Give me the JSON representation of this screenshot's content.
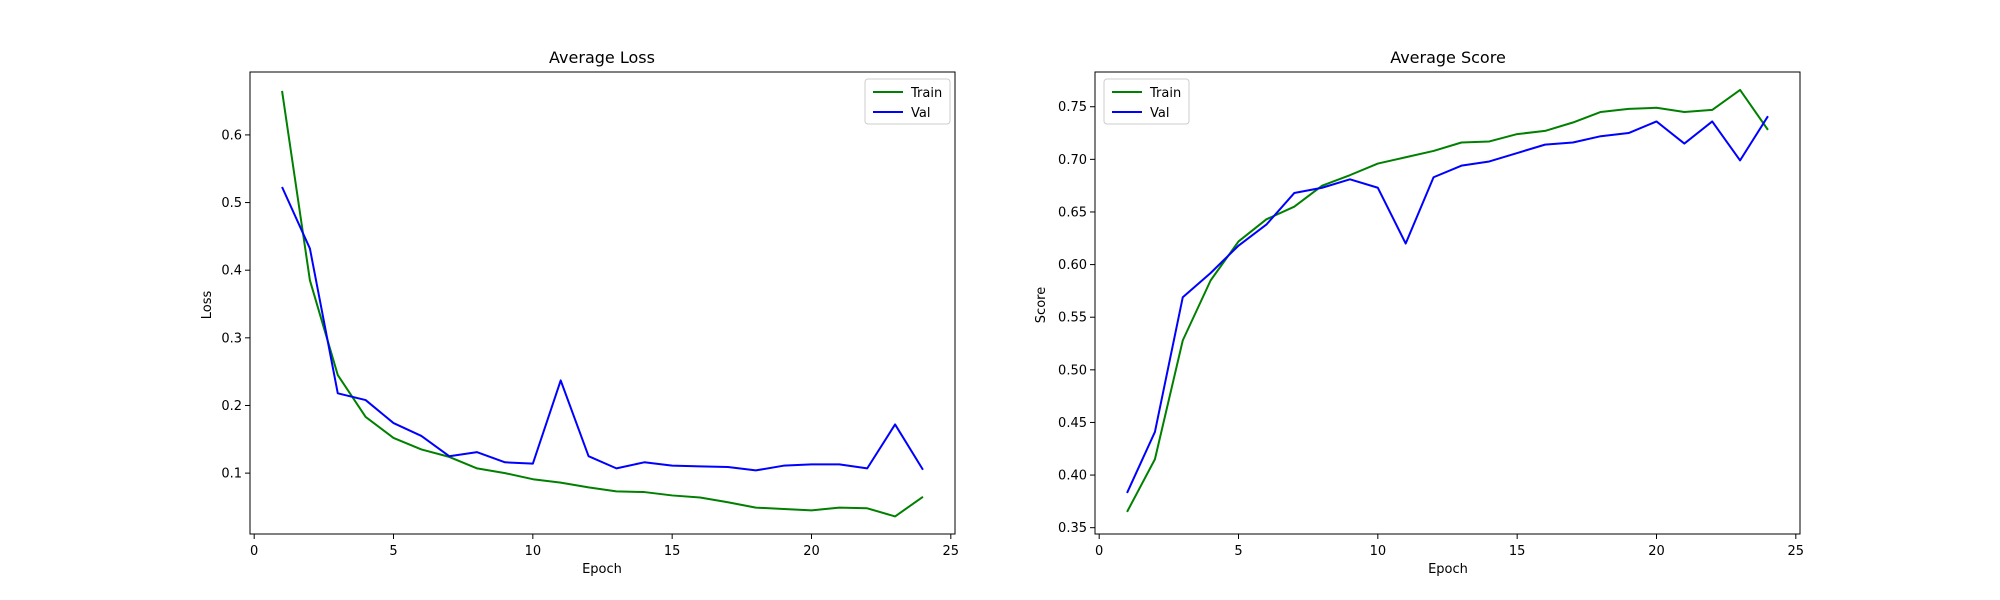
{
  "chart_data": [
    {
      "type": "line",
      "title": "Average Loss",
      "xlabel": "Epoch",
      "ylabel": "Loss",
      "xlim": [
        -0.15,
        25.15
      ],
      "ylim": [
        0.01,
        0.693
      ],
      "xticks": [
        0,
        5,
        10,
        15,
        20,
        25
      ],
      "yticks": [
        0.1,
        0.2,
        0.3,
        0.4,
        0.5,
        0.6
      ],
      "tick_decimals": 1,
      "legend_position": "upper right",
      "grid": false,
      "x": [
        1,
        2,
        3,
        4,
        5,
        6,
        7,
        8,
        9,
        10,
        11,
        12,
        13,
        14,
        15,
        16,
        17,
        18,
        19,
        20,
        21,
        22,
        23,
        24
      ],
      "series": [
        {
          "name": "Train",
          "color": "#008000",
          "values": [
            0.665,
            0.385,
            0.245,
            0.183,
            0.152,
            0.135,
            0.124,
            0.107,
            0.1,
            0.091,
            0.086,
            0.079,
            0.073,
            0.072,
            0.067,
            0.064,
            0.057,
            0.049,
            0.047,
            0.045,
            0.049,
            0.048,
            0.036,
            0.065
          ]
        },
        {
          "name": "Val",
          "color": "#0000ff",
          "values": [
            0.523,
            0.432,
            0.218,
            0.208,
            0.174,
            0.155,
            0.125,
            0.131,
            0.116,
            0.114,
            0.237,
            0.125,
            0.107,
            0.116,
            0.111,
            0.11,
            0.109,
            0.104,
            0.111,
            0.113,
            0.113,
            0.107,
            0.172,
            0.105
          ]
        }
      ]
    },
    {
      "type": "line",
      "title": "Average Score",
      "xlabel": "Epoch",
      "ylabel": "Score",
      "xlim": [
        -0.15,
        25.15
      ],
      "ylim": [
        0.344,
        0.783
      ],
      "xticks": [
        0,
        5,
        10,
        15,
        20,
        25
      ],
      "yticks": [
        0.35,
        0.4,
        0.45,
        0.5,
        0.55,
        0.6,
        0.65,
        0.7,
        0.75
      ],
      "tick_decimals": 2,
      "legend_position": "upper left",
      "grid": false,
      "x": [
        1,
        2,
        3,
        4,
        5,
        6,
        7,
        8,
        9,
        10,
        11,
        12,
        13,
        14,
        15,
        16,
        17,
        18,
        19,
        20,
        21,
        22,
        23,
        24
      ],
      "series": [
        {
          "name": "Train",
          "color": "#008000",
          "values": [
            0.365,
            0.415,
            0.528,
            0.585,
            0.622,
            0.643,
            0.655,
            0.675,
            0.685,
            0.696,
            0.702,
            0.708,
            0.716,
            0.717,
            0.724,
            0.727,
            0.735,
            0.745,
            0.748,
            0.749,
            0.745,
            0.747,
            0.766,
            0.728
          ]
        },
        {
          "name": "Val",
          "color": "#0000ff",
          "values": [
            0.383,
            0.441,
            0.569,
            0.592,
            0.618,
            0.638,
            0.668,
            0.673,
            0.681,
            0.673,
            0.62,
            0.683,
            0.694,
            0.698,
            0.706,
            0.714,
            0.716,
            0.722,
            0.725,
            0.736,
            0.715,
            0.736,
            0.699,
            0.741
          ]
        }
      ]
    }
  ]
}
